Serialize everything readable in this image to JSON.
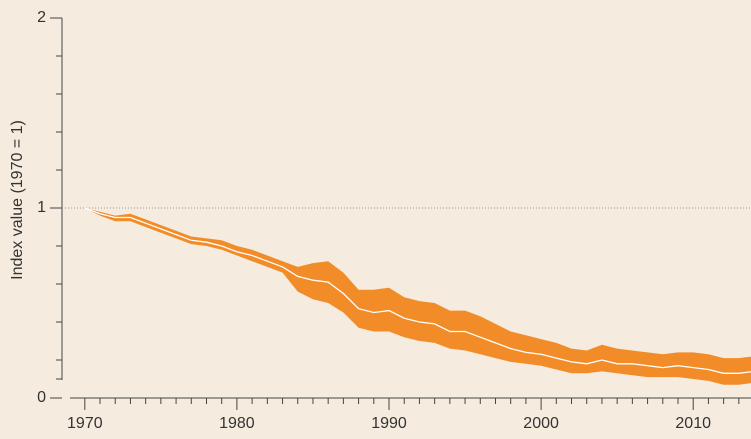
{
  "chart_data": {
    "type": "line",
    "y_label": "Index value (1970 = 1)",
    "x": [
      1970,
      1971,
      1972,
      1973,
      1974,
      1975,
      1976,
      1977,
      1978,
      1979,
      1980,
      1981,
      1982,
      1983,
      1984,
      1985,
      1986,
      1987,
      1988,
      1989,
      1990,
      1991,
      1992,
      1993,
      1994,
      1995,
      1996,
      1997,
      1998,
      1999,
      2000,
      2001,
      2002,
      2003,
      2004,
      2005,
      2006,
      2007,
      2008,
      2009,
      2010,
      2011,
      2012,
      2013,
      2014
    ],
    "values": [
      1,
      0.97,
      0.95,
      0.95,
      0.92,
      0.89,
      0.86,
      0.83,
      0.82,
      0.8,
      0.77,
      0.75,
      0.72,
      0.69,
      0.64,
      0.62,
      0.61,
      0.55,
      0.47,
      0.45,
      0.46,
      0.42,
      0.4,
      0.39,
      0.35,
      0.35,
      0.32,
      0.29,
      0.26,
      0.24,
      0.23,
      0.21,
      0.19,
      0.18,
      0.2,
      0.18,
      0.18,
      0.17,
      0.16,
      0.17,
      0.16,
      0.15,
      0.13,
      0.13,
      0.14
    ],
    "lower": [
      1,
      0.96,
      0.93,
      0.93,
      0.9,
      0.87,
      0.84,
      0.81,
      0.8,
      0.78,
      0.75,
      0.72,
      0.69,
      0.66,
      0.56,
      0.52,
      0.5,
      0.45,
      0.37,
      0.35,
      0.35,
      0.32,
      0.3,
      0.29,
      0.26,
      0.25,
      0.23,
      0.21,
      0.19,
      0.18,
      0.17,
      0.15,
      0.13,
      0.13,
      0.14,
      0.13,
      0.12,
      0.11,
      0.11,
      0.11,
      0.1,
      0.09,
      0.07,
      0.07,
      0.08
    ],
    "upper": [
      1,
      0.98,
      0.96,
      0.97,
      0.94,
      0.91,
      0.88,
      0.85,
      0.84,
      0.83,
      0.8,
      0.78,
      0.75,
      0.72,
      0.69,
      0.71,
      0.72,
      0.66,
      0.57,
      0.57,
      0.58,
      0.53,
      0.51,
      0.5,
      0.46,
      0.46,
      0.43,
      0.39,
      0.35,
      0.33,
      0.31,
      0.29,
      0.26,
      0.25,
      0.28,
      0.26,
      0.25,
      0.24,
      0.23,
      0.24,
      0.24,
      0.23,
      0.21,
      0.21,
      0.22
    ],
    "color": "#ffffff",
    "band_color": "#f28c28",
    "reference_line": 1,
    "xlim": [
      1968.5,
      2013.8
    ],
    "ylim": [
      0,
      2
    ],
    "xticks": [
      1970,
      1980,
      1990,
      2000,
      2010
    ],
    "xminor": [
      1971,
      1972,
      1973,
      1974,
      1975,
      1976,
      1977,
      1978,
      1979,
      1981,
      1982,
      1983,
      1984,
      1985,
      1986,
      1987,
      1988,
      1989,
      1991,
      1992,
      1993,
      1994,
      1995,
      1996,
      1997,
      1998,
      1999,
      2001,
      2002,
      2003,
      2004,
      2005,
      2006,
      2007,
      2008,
      2009,
      2011,
      2012,
      2013
    ],
    "yticks": [
      0,
      1,
      2
    ],
    "yminor": [
      0.1,
      0.2,
      0.4,
      0.6,
      0.8,
      1.2,
      1.4,
      1.6,
      1.8
    ]
  }
}
